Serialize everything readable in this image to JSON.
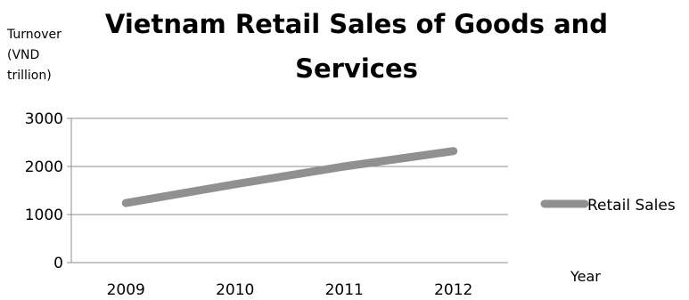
{
  "chart_data": {
    "type": "line",
    "title": [
      "Vietnam Retail Sales of Goods and",
      "Services"
    ],
    "ylabel": [
      "Turnover",
      "(VND",
      "trillion)"
    ],
    "xlabel": "Year",
    "categories": [
      "2009",
      "2010",
      "2011",
      "2012"
    ],
    "series": [
      {
        "name": "Retail Sales",
        "values": [
          1240,
          1630,
          2000,
          2320
        ],
        "color": "#909090"
      }
    ],
    "ylim": [
      0,
      3000
    ],
    "yticks": [
      "0",
      "1000",
      "2000",
      "3000"
    ],
    "grid": true,
    "legend_position": "right"
  }
}
